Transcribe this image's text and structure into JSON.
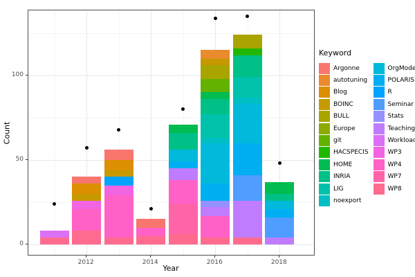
{
  "axes": {
    "x_label": "Year",
    "y_label": "Count",
    "x_ticks": [
      "2012",
      "2014",
      "2016",
      "2018"
    ],
    "y_ticks": [
      "0",
      "50",
      "100"
    ]
  },
  "legend": {
    "title": "Keyword",
    "columns": [
      [
        "Argonne",
        "autotuning",
        "Blog",
        "BOINC",
        "BULL",
        "Europe",
        "git",
        "HACSPECIS",
        "HOME",
        "INRIA",
        "LIG",
        "noexport"
      ],
      [
        "OrgMode",
        "POLARIS",
        "R",
        "Seminar",
        "Stats",
        "Teaching",
        "Workload",
        "WP3",
        "WP4",
        "WP7",
        "WP8"
      ]
    ]
  },
  "colors": {
    "Argonne": "#F8766D",
    "autotuning": "#E98A2C",
    "Blog": "#DC8F00",
    "BOINC": "#C69900",
    "BULL": "#A9A400",
    "Europe": "#8BAB00",
    "git": "#63B200",
    "HACSPECIS": "#21B700",
    "HOME": "#00BC51",
    "INRIA": "#00C087",
    "LIG": "#00C1AA",
    "noexport": "#00BFC4",
    "OrgMode": "#00B9DB",
    "POLARIS": "#00AEF2",
    "R": "#00A3FF",
    "Seminar": "#4F9DFF",
    "Stats": "#9591FF",
    "Teaching": "#C07CFF",
    "Workload": "#DB6FF6",
    "WP3": "#F264E2",
    "WP4": "#FF61C7",
    "WP7": "#FF64A9",
    "WP8": "#FF6B8E"
  },
  "chart_data": {
    "type": "bar",
    "subtype": "stacked-bars-with-point-overlay",
    "title": "",
    "xlabel": "Year",
    "ylabel": "Count",
    "xlim": [
      2010.5,
      2018.5
    ],
    "ylim": [
      0,
      145
    ],
    "grid": "on",
    "legend_position": "right",
    "x_major_gridlines": [
      2012,
      2014,
      2016,
      2018
    ],
    "x_minor_gridlines": [
      2011,
      2013,
      2015,
      2017
    ],
    "y_major_gridlines": [
      0,
      50,
      100
    ],
    "y_minor_gridlines": [
      25,
      75,
      125
    ],
    "categories": [
      2011,
      2012,
      2013,
      2014,
      2015,
      2016,
      2017,
      2018
    ],
    "bars": [
      {
        "year": 2011,
        "total": 8,
        "segments_bottom_to_top": [
          {
            "keyword": "WP8",
            "value": 4
          },
          {
            "keyword": "Workload",
            "value": 4
          }
        ]
      },
      {
        "year": 2012,
        "total": 40,
        "segments_bottom_to_top": [
          {
            "keyword": "WP8",
            "value": 8
          },
          {
            "keyword": "WP4",
            "value": 13
          },
          {
            "keyword": "WP3",
            "value": 5
          },
          {
            "keyword": "BOINC",
            "value": 4
          },
          {
            "keyword": "Blog",
            "value": 6
          },
          {
            "keyword": "Argonne",
            "value": 4
          }
        ]
      },
      {
        "year": 2013,
        "total": 56,
        "segments_bottom_to_top": [
          {
            "keyword": "WP8",
            "value": 4
          },
          {
            "keyword": "WP4",
            "value": 25
          },
          {
            "keyword": "WP3",
            "value": 6
          },
          {
            "keyword": "R",
            "value": 5
          },
          {
            "keyword": "BOINC",
            "value": 4
          },
          {
            "keyword": "Blog",
            "value": 6
          },
          {
            "keyword": "Argonne",
            "value": 6
          }
        ]
      },
      {
        "year": 2014,
        "total": 15,
        "segments_bottom_to_top": [
          {
            "keyword": "WP8",
            "value": 5
          },
          {
            "keyword": "WP4",
            "value": 5
          },
          {
            "keyword": "Argonne",
            "value": 5
          }
        ]
      },
      {
        "year": 2015,
        "total": 71,
        "segments_bottom_to_top": [
          {
            "keyword": "WP8",
            "value": 6
          },
          {
            "keyword": "WP7",
            "value": 18
          },
          {
            "keyword": "WP4",
            "value": 14
          },
          {
            "keyword": "Teaching",
            "value": 7
          },
          {
            "keyword": "POLARIS",
            "value": 4
          },
          {
            "keyword": "OrgMode",
            "value": 7
          },
          {
            "keyword": "INRIA",
            "value": 10
          },
          {
            "keyword": "HOME",
            "value": 5
          }
        ]
      },
      {
        "year": 2016,
        "total": 115,
        "segments_bottom_to_top": [
          {
            "keyword": "WP8",
            "value": 4
          },
          {
            "keyword": "WP4",
            "value": 13
          },
          {
            "keyword": "Teaching",
            "value": 5
          },
          {
            "keyword": "Stats",
            "value": 4
          },
          {
            "keyword": "POLARIS",
            "value": 10
          },
          {
            "keyword": "OrgMode",
            "value": 24
          },
          {
            "keyword": "noexport",
            "value": 3
          },
          {
            "keyword": "LIG",
            "value": 14
          },
          {
            "keyword": "INRIA",
            "value": 9
          },
          {
            "keyword": "HOME",
            "value": 4
          },
          {
            "keyword": "git",
            "value": 8
          },
          {
            "keyword": "BULL",
            "value": 8
          },
          {
            "keyword": "BOINC",
            "value": 4
          },
          {
            "keyword": "autotuning",
            "value": 5
          }
        ]
      },
      {
        "year": 2017,
        "total": 124,
        "segments_bottom_to_top": [
          {
            "keyword": "WP8",
            "value": 4
          },
          {
            "keyword": "Teaching",
            "value": 22
          },
          {
            "keyword": "Seminar",
            "value": 15
          },
          {
            "keyword": "POLARIS",
            "value": 19
          },
          {
            "keyword": "OrgMode",
            "value": 23
          },
          {
            "keyword": "noexport",
            "value": 4
          },
          {
            "keyword": "LIG",
            "value": 12
          },
          {
            "keyword": "INRIA",
            "value": 13
          },
          {
            "keyword": "HACSPECIS",
            "value": 4
          },
          {
            "keyword": "BULL",
            "value": 8
          }
        ]
      },
      {
        "year": 2018,
        "total": 37,
        "segments_bottom_to_top": [
          {
            "keyword": "Teaching",
            "value": 4
          },
          {
            "keyword": "Seminar",
            "value": 12
          },
          {
            "keyword": "POLARIS",
            "value": 5
          },
          {
            "keyword": "OrgMode",
            "value": 5
          },
          {
            "keyword": "INRIA",
            "value": 4
          },
          {
            "keyword": "HOME",
            "value": 7
          }
        ]
      }
    ],
    "points": [
      {
        "year": 2011,
        "value": 24
      },
      {
        "year": 2012,
        "value": 57
      },
      {
        "year": 2013,
        "value": 68
      },
      {
        "year": 2014,
        "value": 21
      },
      {
        "year": 2015,
        "value": 80
      },
      {
        "year": 2016,
        "value": 134
      },
      {
        "year": 2017,
        "value": 135
      },
      {
        "year": 2018,
        "value": 48
      }
    ]
  }
}
